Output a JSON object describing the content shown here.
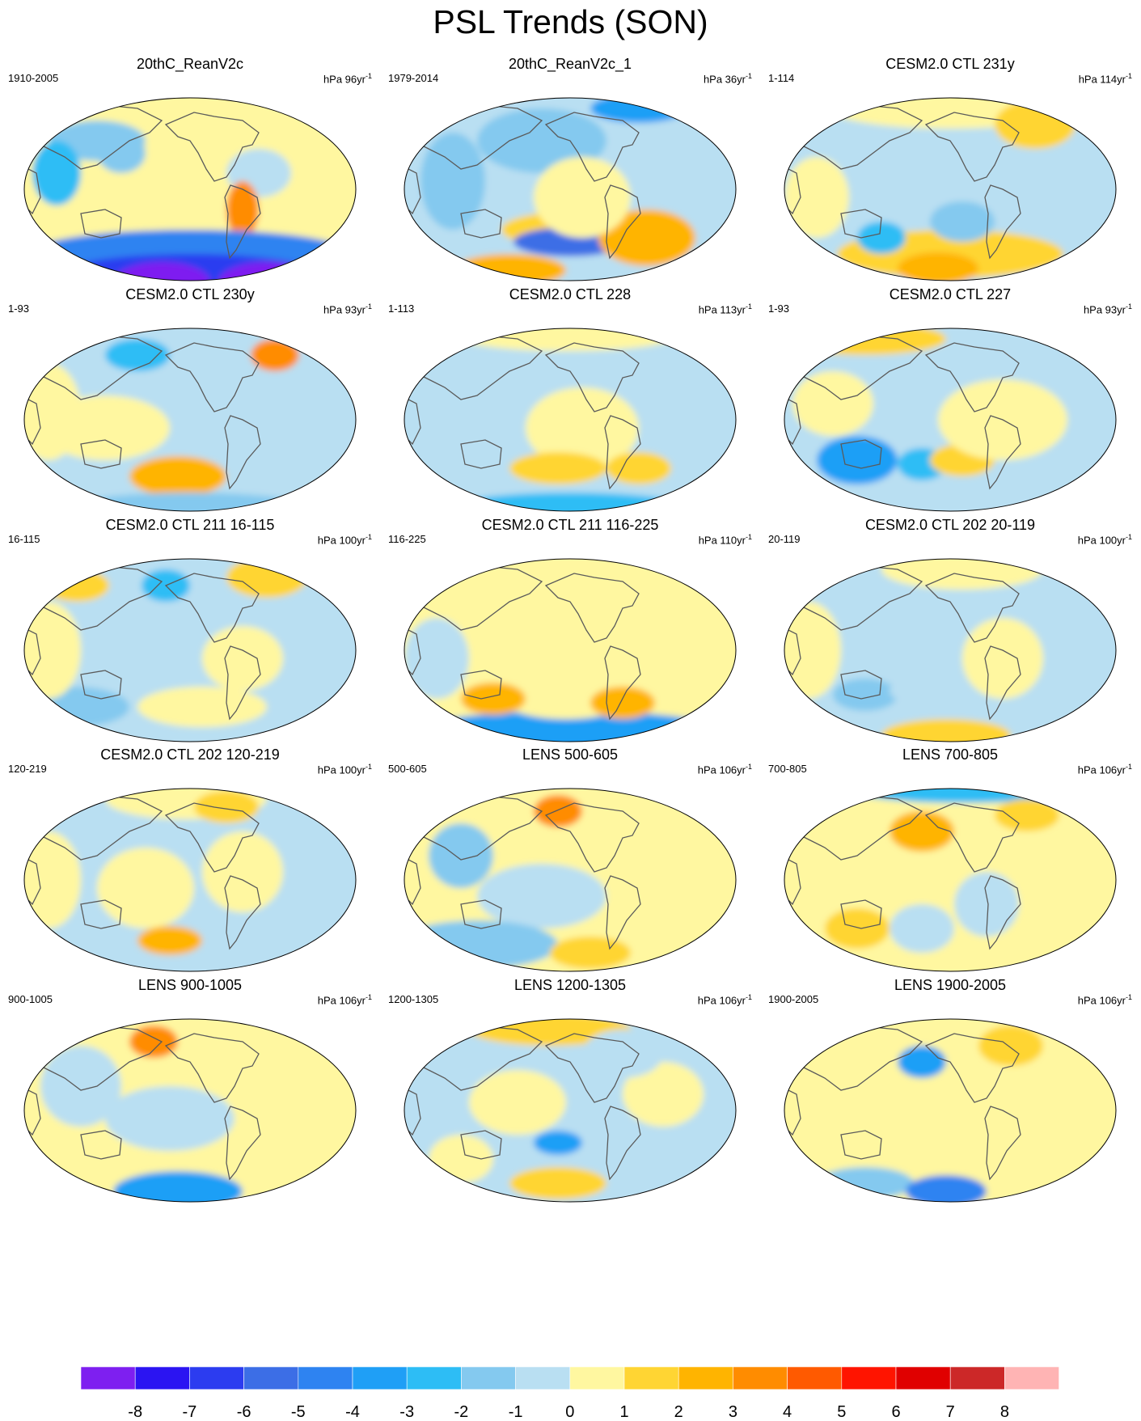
{
  "title": "PSL Trends (SON)",
  "projection": "Robinson",
  "centered_on": "Pacific (180°)",
  "colors": {
    "scale": [
      "#7e1ff0",
      "#2b14f2",
      "#2c3cf0",
      "#3c6ee6",
      "#2e83f1",
      "#1f9ff6",
      "#2dbdf5",
      "#84c9ef",
      "#b9dff2",
      "#fff7a0",
      "#ffd533",
      "#ffb400",
      "#ff8c00",
      "#ff5a00",
      "#ff1400",
      "#e00000",
      "#cc2828",
      "#ffb4b4"
    ],
    "coastline": "#5a5a5a",
    "map_background": "#b9dff2"
  },
  "colorbar": {
    "labels": [
      "-8",
      "-7",
      "-6",
      "-5",
      "-4",
      "-3",
      "-2",
      "-1",
      "0",
      "1",
      "2",
      "3",
      "4",
      "5",
      "6",
      "7",
      "8"
    ]
  },
  "panels": [
    {
      "title": "20thC_ReanV2c",
      "period": "1910-2005",
      "units": "hPa 96yr",
      "exp": "-1"
    },
    {
      "title": "20thC_ReanV2c_1",
      "period": "1979-2014",
      "units": "hPa 36yr",
      "exp": "-1"
    },
    {
      "title": "CESM2.0 CTL 231y",
      "period": "1-114",
      "units": "hPa 114yr",
      "exp": "-1"
    },
    {
      "title": "CESM2.0 CTL 230y",
      "period": "1-93",
      "units": "hPa 93yr",
      "exp": "-1"
    },
    {
      "title": "CESM2.0 CTL 228",
      "period": "1-113",
      "units": "hPa 113yr",
      "exp": "-1"
    },
    {
      "title": "CESM2.0 CTL 227",
      "period": "1-93",
      "units": "hPa 93yr",
      "exp": "-1"
    },
    {
      "title": "CESM2.0 CTL 211 16-115",
      "period": "16-115",
      "units": "hPa 100yr",
      "exp": "-1"
    },
    {
      "title": "CESM2.0 CTL 211 116-225",
      "period": "116-225",
      "units": "hPa 110yr",
      "exp": "-1"
    },
    {
      "title": "CESM2.0 CTL 202 20-119",
      "period": "20-119",
      "units": "hPa 100yr",
      "exp": "-1"
    },
    {
      "title": "CESM2.0 CTL 202 120-219",
      "period": "120-219",
      "units": "hPa 100yr",
      "exp": "-1"
    },
    {
      "title": "LENS 500-605",
      "period": "500-605",
      "units": "hPa 106yr",
      "exp": "-1"
    },
    {
      "title": "LENS 700-805",
      "period": "700-805",
      "units": "hPa 106yr",
      "exp": "-1"
    },
    {
      "title": "LENS 900-1005",
      "period": "900-1005",
      "units": "hPa 106yr",
      "exp": "-1"
    },
    {
      "title": "LENS 1200-1305",
      "period": "1200-1305",
      "units": "hPa 106yr",
      "exp": "-1"
    },
    {
      "title": "LENS 1900-2005",
      "period": "1900-2005",
      "units": "hPa 106yr",
      "exp": "-1"
    }
  ]
}
